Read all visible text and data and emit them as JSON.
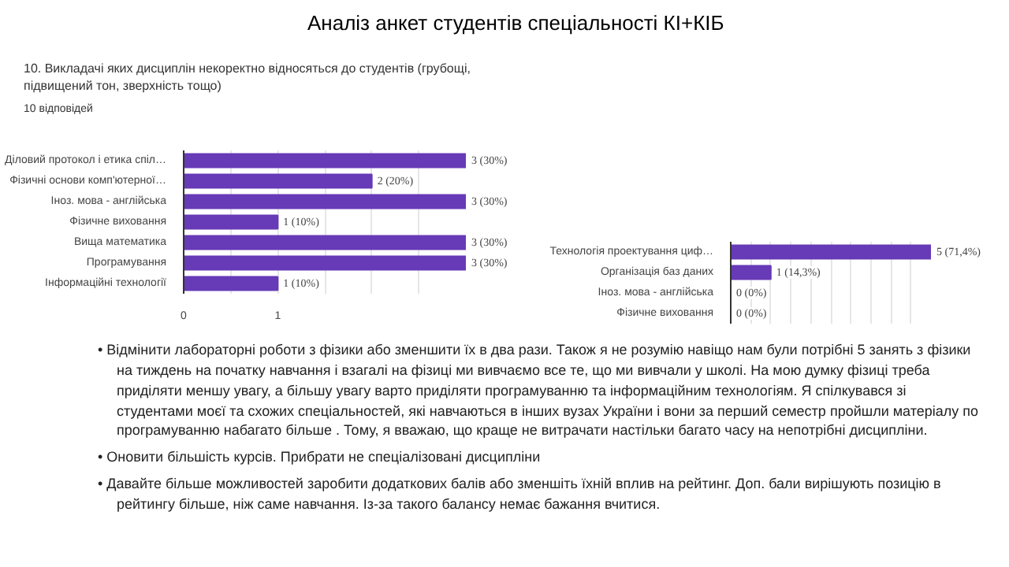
{
  "chart_data": [
    {
      "type": "bar",
      "orientation": "horizontal",
      "title": "Аналіз анкет студентів спеціальності КІ+КІБ",
      "subtitle": "10. Викладачі яких дисциплін некоректно відносяться до студентів (грубощі, підвищений тон, зверхність тощо)",
      "annotations": [
        "10 відповідей"
      ],
      "categories": [
        "Діловий протокол і етика спіл…",
        "Фізичні основи комп'ютерної…",
        "Інoз. мова - англійська",
        "Фізичне виховання",
        "Вища математика",
        "Програмування",
        "Інформаційні технології"
      ],
      "values": [
        3,
        2,
        3,
        1,
        3,
        3,
        1
      ],
      "value_labels": [
        "3 (30%)",
        "2 (20%)",
        "3 (30%)",
        "1 (10%)",
        "3 (30%)",
        "3 (30%)",
        "1 (10%)"
      ],
      "color": "#673ab7",
      "xlim": [
        0,
        3
      ],
      "xticks": [
        0,
        {
          "value": 0.5,
          "label": null
        },
        1,
        {
          "value": 1.5,
          "label": null
        },
        {
          "value": 2,
          "label": null
        },
        {
          "value": 2.5,
          "label": null
        }
      ],
      "grid": "x"
    },
    {
      "type": "bar",
      "orientation": "horizontal",
      "categories": [
        "Технологія проектування циф…",
        "Організація баз даних",
        "Інoз. мова - англійська",
        "Фізичне виховання"
      ],
      "values": [
        5,
        1,
        0,
        0
      ],
      "value_labels": [
        "5 (71,4%)",
        "1 (14,3%)",
        "0 (0%)",
        "0 (0%)"
      ],
      "color": "#673ab7",
      "xlim": [
        0,
        5
      ],
      "xticks": [
        {
          "value": 0,
          "label": null
        },
        {
          "value": 0.5,
          "label": null
        },
        {
          "value": 1,
          "label": null
        },
        {
          "value": 1.5,
          "label": null
        },
        {
          "value": 2,
          "label": null
        },
        {
          "value": 2.5,
          "label": null
        },
        {
          "value": 3,
          "label": null
        },
        {
          "value": 3.5,
          "label": null
        },
        {
          "value": 4,
          "label": null
        },
        {
          "value": 4.5,
          "label": null
        }
      ],
      "grid": "x",
      "tick_labels": "y",
      "annotations": [
        "• Відмінити лабораторні роботи з фізики або зменшити їх в два рази. Також я не розумію навіщо нам були потрібні 5 занять з фізики на тиждень на початку навчання і взагалі на фізиці ми вивчаємо все те, що ми вивчали у школі. На мою думку фізиці треба приділяти меншу увагу, а більшу увагу варто приділяти програмуванню та інформаційним технологіям. Я спілкувався зі студентами моєї та схожих спеціальностей, які навчаються в інших вузах України і вони за перший семестр пройшли матеріалу по програмуванню набагато більше . Тому, я вважаю, що краще не витрачати настільки багато часу на непотрібні дисципліни.",
        "• Оновити більшість курсів. Прибрати не спеціалізовані дисципліни",
        "• Давайте більше можливостей заробити додаткових балів або зменшіть їхній вплив на рейтинг. Доп. бали вирішують позицію в рейтингу більше, ніж саме навчання. Із-за такого балансу немає бажання вчитися."
      ]
    }
  ]
}
